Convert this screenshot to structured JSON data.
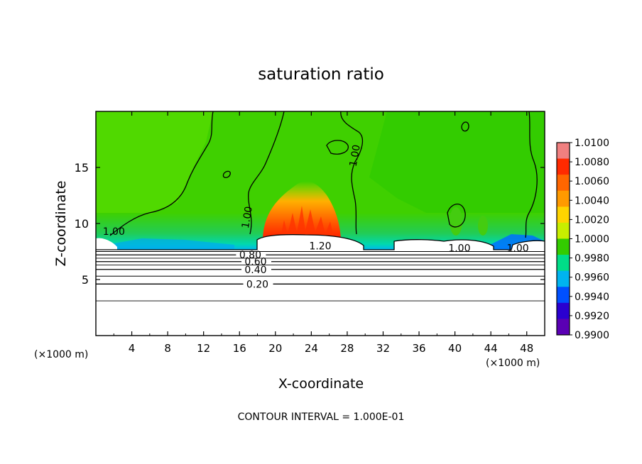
{
  "chart_data": {
    "type": "heatmap",
    "title": "saturation ratio",
    "xlabel": "X-coordinate",
    "ylabel": "Z-coordinate",
    "x_unit_left": "(×1000 m)",
    "x_unit_right": "(×1000 m)",
    "xlim": [
      0,
      50
    ],
    "ylim": [
      0,
      20
    ],
    "x_ticks": [
      4,
      8,
      12,
      16,
      20,
      24,
      28,
      32,
      36,
      40,
      44,
      48
    ],
    "x_tick_labels": [
      "4",
      "8",
      "12",
      "16",
      "20",
      "24",
      "28",
      "32",
      "36",
      "40",
      "44",
      "48"
    ],
    "y_ticks": [
      5,
      10,
      15
    ],
    "y_tick_labels": [
      "5",
      "10",
      "15"
    ],
    "colorbar": {
      "labels": [
        "1.0100",
        "1.0080",
        "1.0060",
        "1.0040",
        "1.0020",
        "1.0000",
        "0.9980",
        "0.9960",
        "0.9940",
        "0.9920",
        "0.9900"
      ],
      "colors": [
        "#f08080",
        "#ff2a00",
        "#ff6600",
        "#ff9a00",
        "#ffd400",
        "#c8ee00",
        "#33cc00",
        "#00dd88",
        "#00b4f0",
        "#0050ff",
        "#2a00d0",
        "#5a00b4"
      ]
    },
    "contour_lines": [
      {
        "level": 0.2,
        "z": 4.6,
        "label": "0.20",
        "label_x": 18.0
      },
      {
        "level": 0.4,
        "z": 5.9,
        "label": "0.40",
        "label_x": 17.8
      },
      {
        "level": 0.6,
        "z": 6.6,
        "label": "0.60",
        "label_x": 17.8
      },
      {
        "level": 0.8,
        "z": 7.2,
        "label": "0.80",
        "label_x": 17.2
      }
    ],
    "contour_labels": [
      {
        "text": "1.20",
        "x": 25.0,
        "z": 7.7
      },
      {
        "text": "1.00",
        "x": 17.2,
        "z": 10.5
      },
      {
        "text": "1.00",
        "x": 29.2,
        "z": 16.0
      },
      {
        "text": "1.00",
        "x": 40.5,
        "z": 7.5
      },
      {
        "text": "1.00",
        "x": 47.0,
        "z": 7.5
      },
      {
        "text": "1.00",
        "x": 2.0,
        "z": 9.0
      }
    ],
    "footer": "CONTOUR INTERVAL = 1.000E-01"
  }
}
